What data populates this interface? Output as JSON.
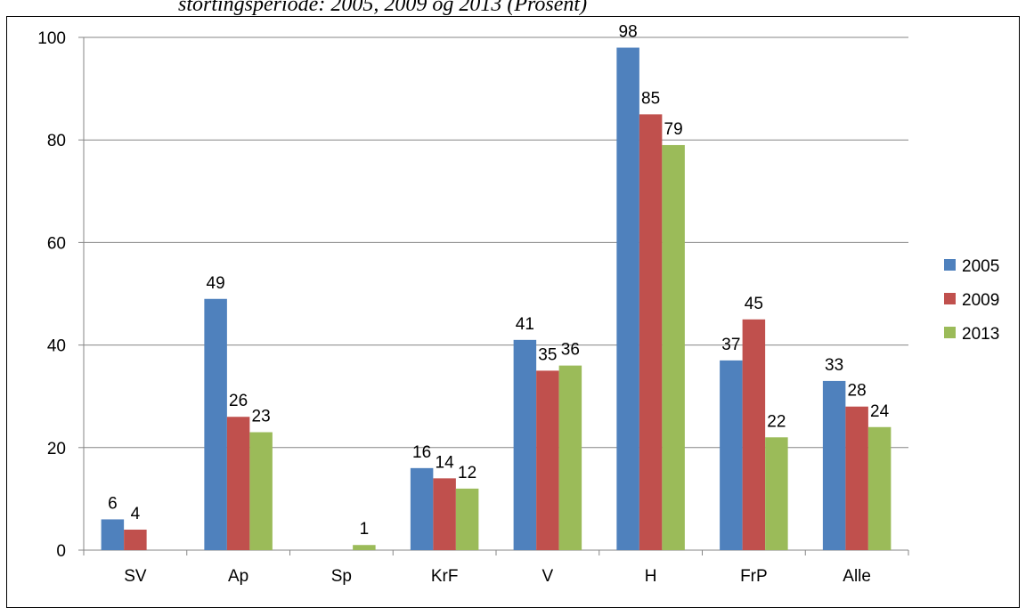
{
  "caption": "stortingsperiode: 2005, 2009 og 2013 (Prosent)",
  "chart_data": {
    "type": "bar",
    "title": "",
    "xlabel": "",
    "ylabel": "",
    "ylim": [
      0,
      100
    ],
    "yticks": [
      "0",
      "20",
      "40",
      "60",
      "80",
      "100"
    ],
    "grid": true,
    "legend_position": "right",
    "categories": [
      "SV",
      "Ap",
      "Sp",
      "KrF",
      "V",
      "H",
      "FrP",
      "Alle"
    ],
    "series": [
      {
        "name": "2005",
        "color": "#4f81bd",
        "values": [
          6,
          49,
          0,
          16,
          41,
          98,
          37,
          33
        ],
        "labels": [
          "6",
          "49",
          "",
          "16",
          "41",
          "98",
          "37",
          "33"
        ]
      },
      {
        "name": "2009",
        "color": "#c0504d",
        "values": [
          4,
          26,
          0,
          14,
          35,
          85,
          45,
          28
        ],
        "labels": [
          "4",
          "26",
          "",
          "14",
          "35",
          "85",
          "45",
          "28"
        ]
      },
      {
        "name": "2013",
        "color": "#9bbb59",
        "values": [
          0,
          23,
          1,
          12,
          36,
          79,
          22,
          24
        ],
        "labels": [
          "",
          "23",
          "1",
          "12",
          "36",
          "79",
          "22",
          "24"
        ]
      }
    ]
  }
}
